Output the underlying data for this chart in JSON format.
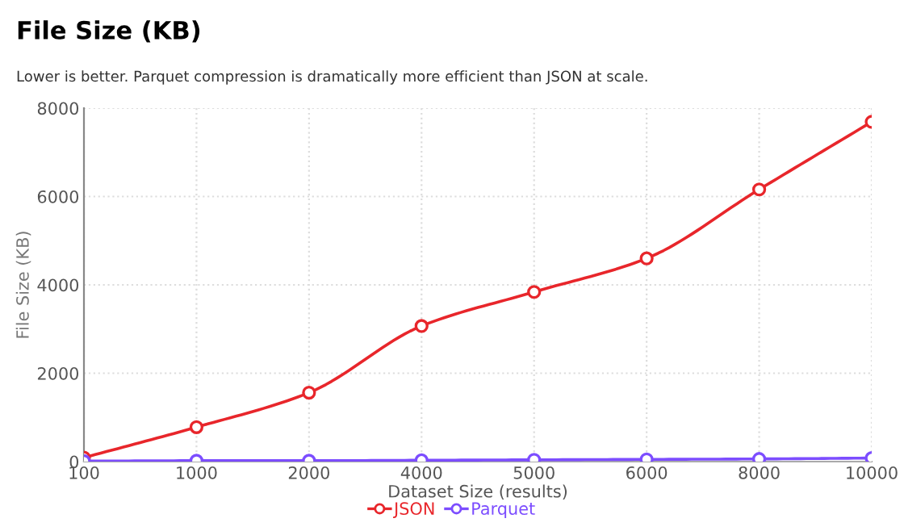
{
  "chart_data": {
    "type": "line",
    "title": "File Size (KB)",
    "subtitle": "Lower is better. Parquet compression is dramatically more efficient than JSON at scale.",
    "xlabel": "Dataset Size (results)",
    "ylabel": "File Size (KB)",
    "categories": [
      "100",
      "1000",
      "2000",
      "4000",
      "5000",
      "6000",
      "8000",
      "10000"
    ],
    "series": [
      {
        "name": "JSON",
        "color": "#e8262b",
        "values": [
          90,
          780,
          1560,
          3070,
          3840,
          4600,
          6160,
          7690
        ]
      },
      {
        "name": "Parquet",
        "color": "#7c4dff",
        "values": [
          10,
          20,
          20,
          30,
          40,
          50,
          60,
          80
        ]
      }
    ],
    "ylim": [
      0,
      8000
    ],
    "yticks": [
      0,
      2000,
      4000,
      6000,
      8000
    ],
    "grid": true,
    "legend": "bottom",
    "marker": "circle",
    "line_style": "solid"
  }
}
